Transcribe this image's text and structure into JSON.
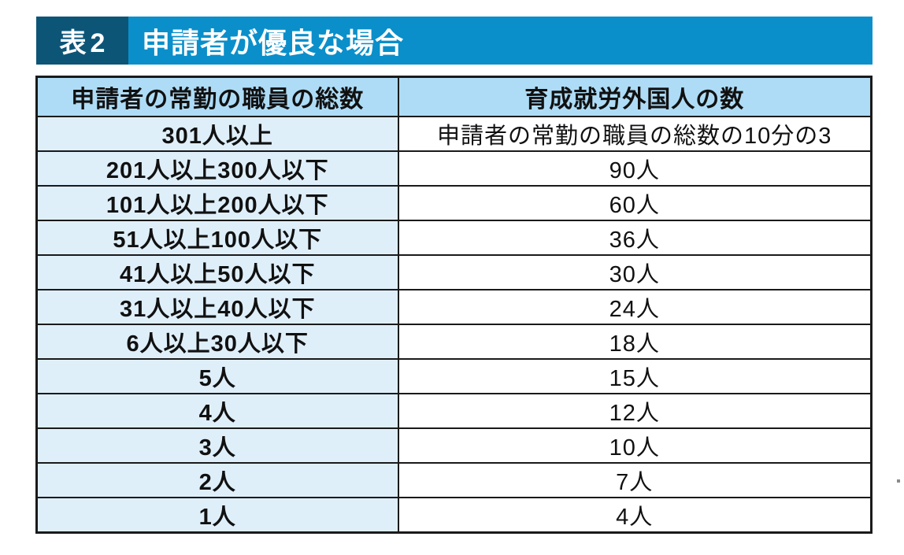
{
  "title": {
    "tag": "表2",
    "text": "申請者が優良な場合"
  },
  "table": {
    "headers": [
      "申請者の常勤の職員の総数",
      "育成就労外国人の数"
    ],
    "rows": [
      {
        "staff": "301人以上",
        "workers": "申請者の常勤の職員の総数の10分の3"
      },
      {
        "staff": "201人以上300人以下",
        "workers": "90人"
      },
      {
        "staff": "101人以上200人以下",
        "workers": "60人"
      },
      {
        "staff": "51人以上100人以下",
        "workers": "36人"
      },
      {
        "staff": "41人以上50人以下",
        "workers": "30人"
      },
      {
        "staff": "31人以上40人以下",
        "workers": "24人"
      },
      {
        "staff": "6人以上30人以下",
        "workers": "18人"
      },
      {
        "staff": "5人",
        "workers": "15人"
      },
      {
        "staff": "4人",
        "workers": "12人"
      },
      {
        "staff": "3人",
        "workers": "10人"
      },
      {
        "staff": "2人",
        "workers": "7人"
      },
      {
        "staff": "1人",
        "workers": "4人"
      }
    ]
  },
  "colors": {
    "banner-blue": "#0a8fca",
    "banner-dark": "#0d5577",
    "header-bg": "#aedcf6",
    "row-label-bg": "#dfeffa",
    "border": "#1a1a1a"
  }
}
